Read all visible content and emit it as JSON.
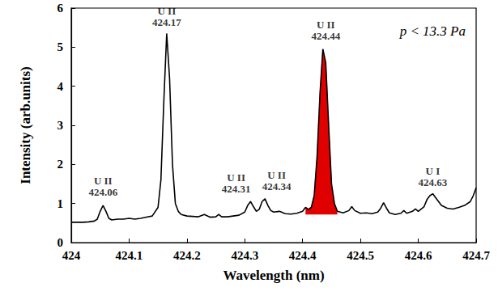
{
  "chart_data": {
    "type": "line",
    "x_label": "Wavelength (nm)",
    "y_label": "Intensity (arb.units)",
    "note": "p < 13.3 Pa",
    "xlim": [
      424,
      424.7
    ],
    "xticks": [
      424,
      424.1,
      424.2,
      424.3,
      424.4,
      424.5,
      424.6,
      424.7
    ],
    "ylim": [
      0,
      6
    ],
    "yticks": [
      0,
      1,
      2,
      3,
      4,
      5,
      6
    ],
    "grid": false,
    "series": [
      {
        "type": "area",
        "color": "#e00000",
        "area_base": 0.72,
        "x": [
          424.405,
          424.41,
          424.415,
          424.42,
          424.425,
          424.43,
          424.435,
          424.44,
          424.445,
          424.45,
          424.455,
          424.46
        ],
        "values": [
          0.9,
          0.85,
          0.9,
          1.2,
          2.2,
          3.8,
          4.95,
          4.6,
          3.0,
          1.5,
          1.0,
          0.8
        ]
      },
      {
        "type": "line",
        "color": "#000000",
        "x": [
          424.0,
          424.01,
          424.02,
          424.03,
          424.04,
          424.045,
          424.05,
          424.055,
          424.06,
          424.065,
          424.07,
          424.08,
          424.09,
          424.1,
          424.11,
          424.12,
          424.13,
          424.14,
          424.15,
          424.155,
          424.16,
          424.165,
          424.17,
          424.175,
          424.18,
          424.185,
          424.19,
          424.2,
          424.21,
          424.22,
          424.23,
          424.24,
          424.25,
          424.255,
          424.26,
          424.27,
          424.28,
          424.29,
          424.3,
          424.305,
          424.31,
          424.315,
          424.32,
          424.325,
          424.33,
          424.335,
          424.34,
          424.345,
          424.35,
          424.36,
          424.37,
          424.38,
          424.39,
          424.4,
          424.405,
          424.41,
          424.415,
          424.42,
          424.425,
          424.43,
          424.435,
          424.44,
          424.445,
          424.45,
          424.455,
          424.46,
          424.47,
          424.48,
          424.485,
          424.49,
          424.5,
          424.51,
          424.52,
          424.53,
          424.535,
          424.54,
          424.545,
          424.55,
          424.56,
          424.57,
          424.575,
          424.58,
          424.59,
          424.595,
          424.6,
          424.61,
          424.615,
          424.62,
          424.625,
          424.63,
          424.64,
          424.65,
          424.66,
          424.67,
          424.68,
          424.69,
          424.695,
          424.7
        ],
        "values": [
          0.52,
          0.52,
          0.52,
          0.53,
          0.55,
          0.6,
          0.8,
          0.95,
          0.8,
          0.62,
          0.58,
          0.6,
          0.6,
          0.62,
          0.6,
          0.62,
          0.65,
          0.68,
          0.9,
          1.6,
          3.6,
          5.35,
          4.2,
          2.0,
          1.0,
          0.8,
          0.72,
          0.68,
          0.67,
          0.66,
          0.72,
          0.65,
          0.66,
          0.72,
          0.66,
          0.66,
          0.68,
          0.7,
          0.78,
          0.95,
          1.05,
          0.92,
          0.8,
          0.85,
          1.05,
          1.12,
          0.95,
          0.82,
          0.78,
          0.8,
          0.74,
          0.73,
          0.75,
          0.8,
          0.9,
          0.85,
          0.9,
          1.2,
          2.2,
          3.8,
          4.95,
          4.6,
          3.0,
          1.5,
          1.0,
          0.8,
          0.76,
          0.82,
          0.92,
          0.82,
          0.75,
          0.76,
          0.74,
          0.78,
          0.88,
          1.02,
          0.88,
          0.76,
          0.72,
          0.75,
          0.82,
          0.75,
          0.8,
          0.86,
          0.8,
          0.92,
          1.1,
          1.2,
          1.25,
          1.15,
          0.95,
          0.88,
          0.86,
          0.9,
          0.95,
          1.05,
          1.2,
          1.4
        ]
      }
    ],
    "annotations": [
      {
        "text": [
          "U II",
          "424.06"
        ],
        "x": 424.055,
        "y": 1.1
      },
      {
        "text": [
          "U II",
          "424.17"
        ],
        "x": 424.165,
        "y": 5.45
      },
      {
        "text": [
          "U II",
          "424.31"
        ],
        "x": 424.285,
        "y": 1.2
      },
      {
        "text": [
          "U II",
          "424.34"
        ],
        "x": 424.355,
        "y": 1.25
      },
      {
        "text": [
          "U II",
          "424.44"
        ],
        "x": 424.44,
        "y": 5.1
      },
      {
        "text": [
          "U I",
          "424.63"
        ],
        "x": 424.625,
        "y": 1.35
      }
    ]
  }
}
